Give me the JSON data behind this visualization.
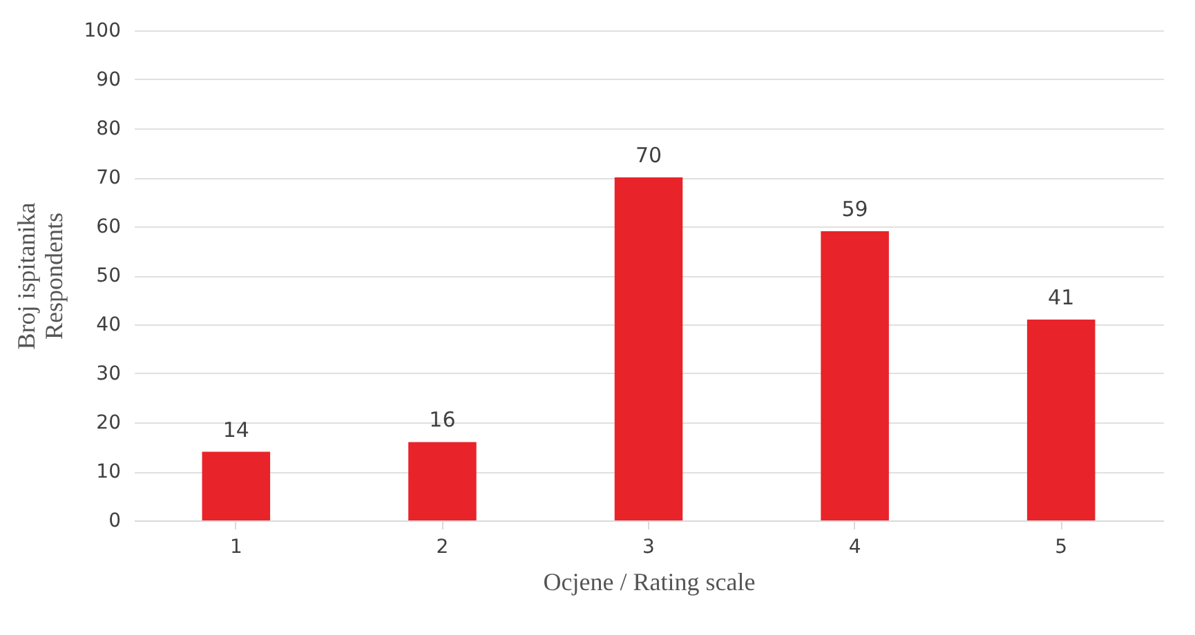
{
  "chart_data": {
    "type": "bar",
    "xlabel": "Ocjene / Rating scale",
    "ylabel": "Broj ispitanika\nRespondents",
    "categories": [
      "1",
      "2",
      "3",
      "4",
      "5"
    ],
    "values": [
      14,
      16,
      70,
      59,
      41
    ],
    "color": "#e8242a",
    "ylim": [
      0,
      100
    ],
    "yticks": [
      0,
      10,
      20,
      30,
      40,
      50,
      60,
      70,
      80,
      90,
      100
    ],
    "grid": "y",
    "data_labels": true
  }
}
